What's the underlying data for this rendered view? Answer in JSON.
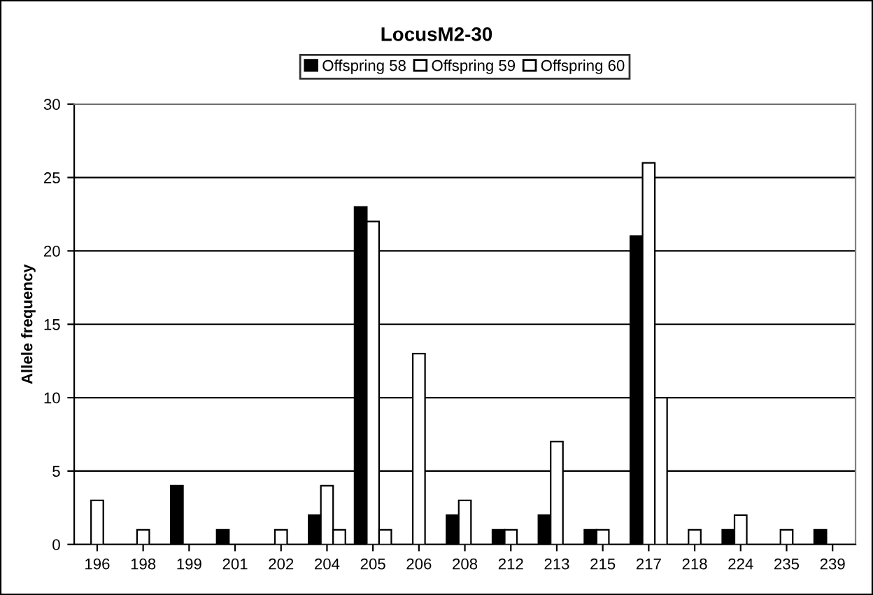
{
  "chart_data": {
    "type": "bar",
    "title": "LocusM2-30",
    "ylabel": "Allele frequency",
    "categories": [
      "196",
      "198",
      "199",
      "201",
      "202",
      "204",
      "205",
      "206",
      "208",
      "212",
      "213",
      "215",
      "217",
      "218",
      "224",
      "235",
      "239"
    ],
    "series": [
      {
        "name": "Offspring 58",
        "color": "#000000",
        "values": [
          null,
          null,
          4,
          1,
          null,
          2,
          23,
          null,
          2,
          1,
          2,
          1,
          21,
          null,
          1,
          null,
          1
        ]
      },
      {
        "name": "Offspring 59",
        "color": "#ffffff",
        "values": [
          3,
          1,
          null,
          null,
          1,
          4,
          22,
          13,
          3,
          1,
          7,
          1,
          26,
          1,
          2,
          1,
          null
        ]
      },
      {
        "name": "Offspring 60",
        "color": "#ffffff",
        "values": [
          null,
          null,
          null,
          null,
          null,
          1,
          1,
          null,
          null,
          null,
          null,
          null,
          10,
          null,
          null,
          null,
          null
        ]
      }
    ],
    "ylim": [
      0,
      30
    ],
    "yticks": [
      0,
      5,
      10,
      15,
      20,
      25,
      30
    ],
    "grid": "y",
    "legend": "top"
  }
}
